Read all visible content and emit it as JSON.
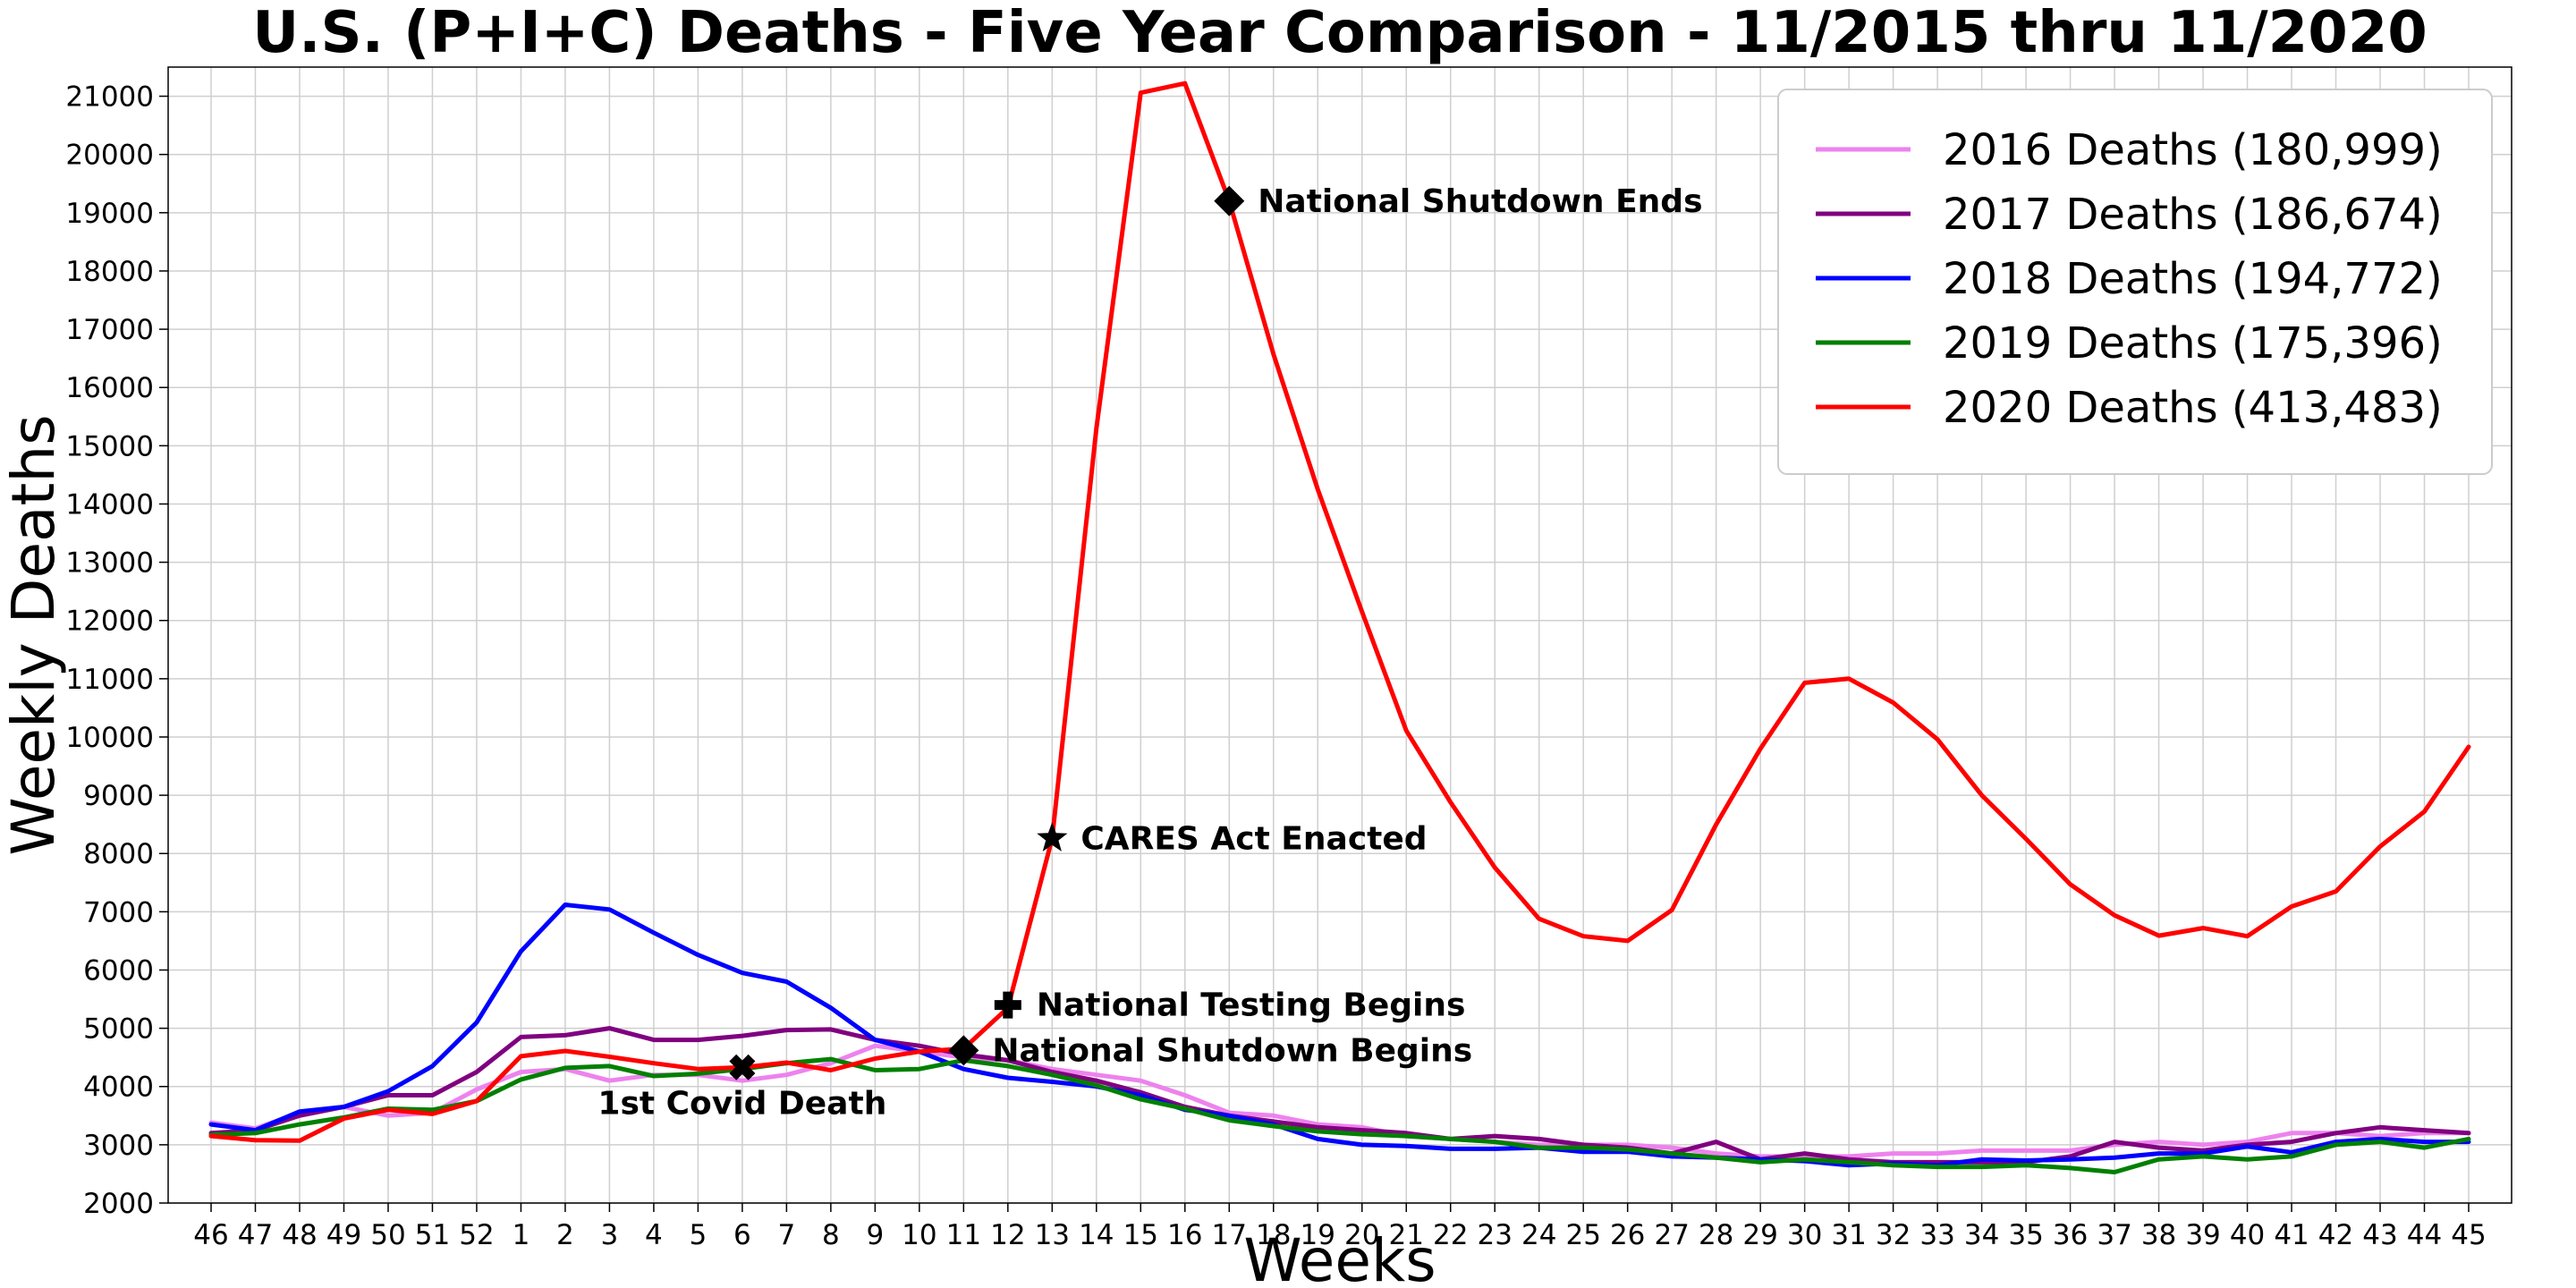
{
  "chart_data": {
    "type": "line",
    "title": "U.S. (P+I+C) Deaths - Five Year Comparison - 11/2015 thru 11/2020",
    "xlabel": "Weeks",
    "ylabel": "Weekly Deaths",
    "ylim": [
      2000,
      21500
    ],
    "yticks": [
      2000,
      3000,
      4000,
      5000,
      6000,
      7000,
      8000,
      9000,
      10000,
      11000,
      12000,
      13000,
      14000,
      15000,
      16000,
      17000,
      18000,
      19000,
      20000,
      21000
    ],
    "grid": true,
    "legend_position": "top-right",
    "categories": [
      "46",
      "47",
      "48",
      "49",
      "50",
      "51",
      "52",
      "1",
      "2",
      "3",
      "4",
      "5",
      "6",
      "7",
      "8",
      "9",
      "10",
      "11",
      "12",
      "13",
      "14",
      "15",
      "16",
      "17",
      "18",
      "19",
      "20",
      "21",
      "22",
      "23",
      "24",
      "25",
      "26",
      "27",
      "28",
      "29",
      "30",
      "31",
      "32",
      "33",
      "34",
      "35",
      "36",
      "37",
      "38",
      "39",
      "40",
      "41",
      "42",
      "43",
      "44",
      "45"
    ],
    "series": [
      {
        "name": "2016 Deaths (180,999)",
        "color": "#ee82ee",
        "values": [
          3380,
          3280,
          3550,
          3650,
          3500,
          3550,
          3950,
          4250,
          4300,
          4100,
          4200,
          4200,
          4100,
          4200,
          4400,
          4700,
          4600,
          4500,
          4450,
          4300,
          4200,
          4100,
          3850,
          3550,
          3500,
          3350,
          3300,
          3150,
          3100,
          3050,
          3000,
          3000,
          3000,
          2950,
          2850,
          2800,
          2800,
          2800,
          2850,
          2850,
          2900,
          2900,
          2900,
          3000,
          3050,
          3000,
          3050,
          3200,
          3200,
          3150,
          3200,
          3200
        ]
      },
      {
        "name": "2017 Deaths (186,674)",
        "color": "#800080",
        "values": [
          3200,
          3250,
          3500,
          3650,
          3850,
          3850,
          4250,
          4850,
          4880,
          5000,
          4800,
          4800,
          4870,
          4970,
          4980,
          4800,
          4700,
          4550,
          4450,
          4250,
          4100,
          3900,
          3650,
          3500,
          3400,
          3300,
          3250,
          3200,
          3100,
          3150,
          3100,
          3000,
          2950,
          2850,
          3050,
          2750,
          2850,
          2750,
          2700,
          2700,
          2700,
          2700,
          2800,
          3050,
          2950,
          2900,
          3000,
          3050,
          3200,
          3300,
          3250,
          3200
        ]
      },
      {
        "name": "2018 Deaths (194,772)",
        "color": "#0000ff",
        "values": [
          3350,
          3250,
          3570,
          3650,
          3920,
          4350,
          5100,
          6320,
          7120,
          7040,
          6640,
          6260,
          5950,
          5800,
          5350,
          4800,
          4600,
          4300,
          4150,
          4080,
          4000,
          3850,
          3600,
          3500,
          3350,
          3100,
          3000,
          2980,
          2930,
          2930,
          2950,
          2880,
          2880,
          2800,
          2780,
          2750,
          2720,
          2650,
          2680,
          2650,
          2750,
          2730,
          2750,
          2780,
          2850,
          2850,
          2970,
          2870,
          3050,
          3100,
          3050,
          3050
        ]
      },
      {
        "name": "2019 Deaths (175,396)",
        "color": "#008000",
        "values": [
          3170,
          3200,
          3350,
          3470,
          3620,
          3600,
          3750,
          4120,
          4320,
          4350,
          4180,
          4220,
          4300,
          4400,
          4470,
          4280,
          4300,
          4450,
          4350,
          4200,
          4020,
          3780,
          3620,
          3420,
          3320,
          3230,
          3180,
          3150,
          3100,
          3050,
          2950,
          2950,
          2920,
          2850,
          2780,
          2700,
          2750,
          2700,
          2650,
          2620,
          2620,
          2650,
          2600,
          2530,
          2750,
          2800,
          2750,
          2800,
          3000,
          3050,
          2950,
          3100
        ]
      },
      {
        "name": "2020 Deaths (413,483)",
        "color": "#ff0000",
        "values": [
          3150,
          3080,
          3070,
          3450,
          3600,
          3530,
          3750,
          4520,
          4610,
          4510,
          4400,
          4300,
          4330,
          4410,
          4280,
          4480,
          4600,
          4650,
          5350,
          8260,
          15300,
          21060,
          21220,
          19200,
          16570,
          14250,
          12150,
          10110,
          8880,
          7760,
          6880,
          6580,
          6500,
          7030,
          8500,
          9800,
          10930,
          11000,
          10590,
          9960,
          9000,
          8250,
          7470,
          6940,
          6590,
          6720,
          6580,
          7090,
          7350,
          8120,
          8720,
          9830
        ]
      }
    ],
    "annotations": [
      {
        "text": "1st Covid Death",
        "marker": "X",
        "x": "6",
        "y": 4330,
        "label_position": "below"
      },
      {
        "text": "National Shutdown Begins",
        "marker": "diamond",
        "x": "11",
        "y": 4620,
        "label_position": "right"
      },
      {
        "text": "National Testing Begins",
        "marker": "plus",
        "x": "12",
        "y": 5400,
        "label_position": "right"
      },
      {
        "text": "CARES Act Enacted",
        "marker": "star",
        "x": "13",
        "y": 8260,
        "label_position": "right"
      },
      {
        "text": "National Shutdown Ends",
        "marker": "diamond",
        "x": "17",
        "y": 19200,
        "label_position": "right"
      }
    ]
  }
}
